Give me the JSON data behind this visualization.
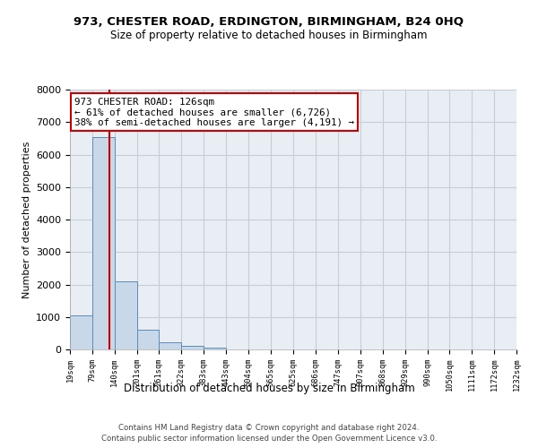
{
  "title": "973, CHESTER ROAD, ERDINGTON, BIRMINGHAM, B24 0HQ",
  "subtitle": "Size of property relative to detached houses in Birmingham",
  "xlabel": "Distribution of detached houses by size in Birmingham",
  "ylabel": "Number of detached properties",
  "footer_line1": "Contains HM Land Registry data © Crown copyright and database right 2024.",
  "footer_line2": "Contains public sector information licensed under the Open Government Licence v3.0.",
  "annotation_title": "973 CHESTER ROAD: 126sqm",
  "annotation_line1": "← 61% of detached houses are smaller (6,726)",
  "annotation_line2": "38% of semi-detached houses are larger (4,191) →",
  "property_size": 126,
  "bin_edges": [
    19,
    79,
    140,
    201,
    261,
    322,
    383,
    443,
    504,
    565,
    625,
    686,
    747,
    807,
    868,
    929,
    990,
    1050,
    1111,
    1172,
    1232
  ],
  "bar_heights": [
    1050,
    6550,
    2100,
    600,
    210,
    100,
    55,
    0,
    0,
    0,
    0,
    0,
    0,
    0,
    0,
    0,
    0,
    0,
    0,
    0
  ],
  "bar_color": "#c8d8e8",
  "bar_edge_color": "#5b8db8",
  "vline_color": "#cc0000",
  "vline_x": 126,
  "annotation_box_color": "#cc0000",
  "background_color": "#ffffff",
  "axes_bg_color": "#e8eef4",
  "grid_color": "#c5cdd5",
  "ylim": [
    0,
    8000
  ],
  "yticks": [
    0,
    1000,
    2000,
    3000,
    4000,
    5000,
    6000,
    7000,
    8000
  ]
}
